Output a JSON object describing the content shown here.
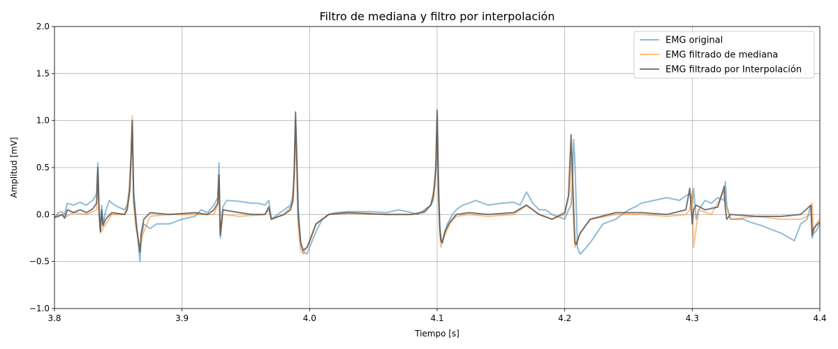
{
  "chart_data": {
    "type": "line",
    "title": "Filtro de mediana y filtro por interpolación",
    "xlabel": "Tiempo [s]",
    "ylabel": "Amplitud [mV]",
    "xlim": [
      3.8,
      4.4
    ],
    "ylim": [
      -1.0,
      2.0
    ],
    "xticks": [
      3.8,
      3.9,
      4.0,
      4.1,
      4.2,
      4.3,
      4.4
    ],
    "xtick_labels": [
      "3.8",
      "3.9",
      "4.0",
      "4.1",
      "4.2",
      "4.3",
      "4.4"
    ],
    "yticks": [
      -1.0,
      -0.5,
      0.0,
      0.5,
      1.0,
      1.5,
      2.0
    ],
    "ytick_labels": [
      "−1.0",
      "−0.5",
      "0.0",
      "0.5",
      "1.0",
      "1.5",
      "2.0"
    ],
    "grid": true,
    "legend_position": "top-right",
    "series": [
      {
        "name": "EMG original",
        "color": "#1f77b4",
        "x": [
          3.8,
          3.803,
          3.806,
          3.808,
          3.81,
          3.815,
          3.82,
          3.825,
          3.83,
          3.833,
          3.834,
          3.835,
          3.836,
          3.837,
          3.838,
          3.84,
          3.843,
          3.845,
          3.85,
          3.855,
          3.857,
          3.859,
          3.86,
          3.861,
          3.862,
          3.864,
          3.866,
          3.867,
          3.868,
          3.87,
          3.875,
          3.88,
          3.89,
          3.9,
          3.91,
          3.915,
          3.92,
          3.925,
          3.928,
          3.929,
          3.93,
          3.932,
          3.935,
          3.945,
          3.955,
          3.96,
          3.965,
          3.968,
          3.97,
          3.975,
          3.98,
          3.985,
          3.987,
          3.988,
          3.989,
          3.99,
          3.991,
          3.993,
          3.995,
          3.998,
          4.0,
          4.005,
          4.01,
          4.015,
          4.02,
          4.03,
          4.04,
          4.05,
          4.06,
          4.07,
          4.08,
          4.085,
          4.09,
          4.095,
          4.097,
          4.098,
          4.099,
          4.1,
          4.101,
          4.102,
          4.103,
          4.104,
          4.106,
          4.108,
          4.11,
          4.112,
          4.115,
          4.118,
          4.12,
          4.125,
          4.13,
          4.14,
          4.15,
          4.16,
          4.165,
          4.17,
          4.175,
          4.18,
          4.185,
          4.19,
          4.2,
          4.203,
          4.205,
          4.206,
          4.207,
          4.208,
          4.209,
          4.21,
          4.212,
          4.215,
          4.22,
          4.225,
          4.23,
          4.24,
          4.245,
          4.25,
          4.255,
          4.26,
          4.27,
          4.28,
          4.29,
          4.295,
          4.298,
          4.299,
          4.3,
          4.301,
          4.303,
          4.305,
          4.31,
          4.315,
          4.32,
          4.325,
          4.326,
          4.327,
          4.33,
          4.34,
          4.345,
          4.35,
          4.355,
          4.36,
          4.37,
          4.38,
          4.385,
          4.39,
          4.393,
          4.394,
          4.395,
          4.397,
          4.4
        ],
        "y": [
          -0.04,
          0.02,
          0.03,
          0.0,
          0.12,
          0.1,
          0.13,
          0.1,
          0.15,
          0.22,
          0.55,
          0.05,
          -0.18,
          0.1,
          -0.1,
          0.03,
          0.15,
          0.12,
          0.08,
          0.05,
          0.1,
          0.3,
          0.6,
          0.95,
          0.25,
          -0.05,
          -0.35,
          -0.5,
          -0.25,
          -0.1,
          -0.15,
          -0.1,
          -0.1,
          -0.05,
          -0.02,
          0.05,
          0.02,
          0.1,
          0.18,
          0.55,
          -0.25,
          0.08,
          0.15,
          0.14,
          0.12,
          0.12,
          0.1,
          0.15,
          -0.05,
          0.0,
          0.05,
          0.1,
          0.2,
          0.5,
          1.0,
          0.6,
          0.1,
          -0.3,
          -0.4,
          -0.42,
          -0.35,
          -0.18,
          -0.05,
          0.0,
          0.02,
          0.03,
          0.03,
          0.03,
          0.02,
          0.05,
          0.02,
          0.0,
          0.05,
          0.1,
          0.15,
          0.3,
          0.55,
          1.05,
          0.4,
          -0.1,
          -0.25,
          -0.3,
          -0.2,
          -0.1,
          -0.05,
          0.0,
          0.05,
          0.08,
          0.1,
          0.12,
          0.15,
          0.1,
          0.12,
          0.13,
          0.1,
          0.24,
          0.12,
          0.05,
          0.05,
          0.0,
          -0.05,
          0.05,
          0.1,
          0.3,
          0.8,
          0.55,
          0.1,
          -0.35,
          -0.42,
          -0.38,
          -0.3,
          -0.2,
          -0.1,
          -0.05,
          0.0,
          0.05,
          0.08,
          0.12,
          0.15,
          0.18,
          0.15,
          0.2,
          0.22,
          0.2,
          0.12,
          0.28,
          -0.05,
          0.05,
          0.15,
          0.12,
          0.18,
          0.15,
          0.35,
          0.1,
          -0.05,
          -0.05,
          -0.08,
          -0.1,
          -0.12,
          -0.15,
          -0.2,
          -0.28,
          -0.1,
          -0.05,
          0.1,
          -0.25,
          -0.2,
          -0.18,
          -0.1
        ]
      },
      {
        "name": "EMG filtrado de mediana",
        "color": "#ff7f0e",
        "x": [
          3.8,
          3.806,
          3.808,
          3.815,
          3.825,
          3.833,
          3.834,
          3.835,
          3.836,
          3.838,
          3.845,
          3.855,
          3.858,
          3.86,
          3.861,
          3.862,
          3.864,
          3.866,
          3.867,
          3.869,
          3.875,
          3.89,
          3.91,
          3.925,
          3.928,
          3.929,
          3.93,
          3.932,
          3.945,
          3.965,
          3.968,
          3.97,
          3.98,
          3.986,
          3.988,
          3.989,
          3.99,
          3.991,
          3.993,
          3.995,
          4.0,
          4.005,
          4.015,
          4.03,
          4.06,
          4.08,
          4.09,
          4.095,
          4.097,
          4.099,
          4.1,
          4.101,
          4.102,
          4.103,
          4.105,
          4.11,
          4.115,
          4.125,
          4.14,
          4.16,
          4.17,
          4.18,
          4.19,
          4.2,
          4.204,
          4.205,
          4.206,
          4.207,
          4.208,
          4.209,
          4.212,
          4.22,
          4.24,
          4.26,
          4.28,
          4.295,
          4.298,
          4.3,
          4.301,
          4.305,
          4.315,
          4.325,
          4.326,
          4.33,
          4.35,
          4.37,
          4.385,
          4.393,
          4.394,
          4.395,
          4.397,
          4.4
        ],
        "y": [
          -0.02,
          0.0,
          -0.03,
          0.02,
          0.0,
          0.05,
          0.45,
          0.0,
          -0.2,
          -0.15,
          0.0,
          0.0,
          0.15,
          0.6,
          1.05,
          0.1,
          -0.15,
          -0.3,
          -0.38,
          -0.22,
          -0.02,
          0.0,
          0.0,
          0.0,
          0.1,
          0.38,
          -0.22,
          0.0,
          -0.02,
          0.0,
          0.05,
          -0.05,
          0.0,
          0.1,
          0.4,
          1.0,
          0.5,
          -0.1,
          -0.38,
          -0.42,
          -0.3,
          -0.1,
          0.0,
          0.01,
          0.0,
          0.0,
          0.02,
          0.1,
          0.25,
          0.5,
          1.0,
          0.2,
          -0.2,
          -0.35,
          -0.25,
          -0.1,
          -0.02,
          0.0,
          -0.02,
          0.0,
          0.1,
          0.0,
          -0.05,
          0.0,
          0.25,
          0.75,
          0.35,
          -0.1,
          -0.35,
          -0.3,
          -0.2,
          -0.05,
          0.0,
          0.0,
          -0.02,
          0.0,
          0.05,
          0.25,
          -0.35,
          0.05,
          0.0,
          0.25,
          0.1,
          -0.05,
          -0.02,
          -0.05,
          -0.05,
          0.0,
          0.12,
          -0.2,
          -0.1,
          -0.05
        ]
      },
      {
        "name": "EMG filtrado por Interpolación",
        "color": "#555555",
        "x": [
          3.8,
          3.803,
          3.806,
          3.808,
          3.81,
          3.815,
          3.82,
          3.825,
          3.83,
          3.833,
          3.834,
          3.835,
          3.836,
          3.837,
          3.838,
          3.84,
          3.845,
          3.855,
          3.857,
          3.859,
          3.86,
          3.861,
          3.862,
          3.864,
          3.866,
          3.867,
          3.868,
          3.87,
          3.875,
          3.89,
          3.91,
          3.92,
          3.925,
          3.928,
          3.929,
          3.93,
          3.932,
          3.945,
          3.955,
          3.965,
          3.968,
          3.97,
          3.98,
          3.985,
          3.987,
          3.988,
          3.989,
          3.99,
          3.991,
          3.993,
          3.995,
          3.998,
          4.0,
          4.005,
          4.015,
          4.03,
          4.06,
          4.08,
          4.09,
          4.095,
          4.097,
          4.098,
          4.099,
          4.1,
          4.101,
          4.102,
          4.103,
          4.104,
          4.106,
          4.11,
          4.115,
          4.125,
          4.14,
          4.16,
          4.17,
          4.18,
          4.19,
          4.2,
          4.203,
          4.205,
          4.206,
          4.207,
          4.208,
          4.209,
          4.21,
          4.212,
          4.22,
          4.24,
          4.26,
          4.28,
          4.295,
          4.298,
          4.3,
          4.301,
          4.303,
          4.31,
          4.32,
          4.325,
          4.326,
          4.327,
          4.33,
          4.35,
          4.37,
          4.385,
          4.393,
          4.394,
          4.395,
          4.397,
          4.4
        ],
        "y": [
          -0.03,
          -0.02,
          0.0,
          -0.04,
          0.05,
          0.02,
          0.05,
          0.02,
          0.06,
          0.12,
          0.5,
          0.02,
          -0.18,
          0.05,
          -0.12,
          -0.05,
          0.02,
          0.0,
          0.05,
          0.25,
          0.6,
          1.0,
          0.2,
          -0.1,
          -0.3,
          -0.4,
          -0.2,
          -0.05,
          0.02,
          0.0,
          0.02,
          0.0,
          0.05,
          0.12,
          0.42,
          -0.22,
          0.05,
          0.02,
          0.0,
          0.0,
          0.08,
          -0.05,
          0.0,
          0.05,
          0.15,
          0.45,
          1.09,
          0.55,
          0.0,
          -0.3,
          -0.38,
          -0.35,
          -0.28,
          -0.1,
          0.0,
          0.02,
          0.0,
          0.0,
          0.03,
          0.1,
          0.2,
          0.3,
          0.5,
          1.11,
          0.3,
          -0.15,
          -0.28,
          -0.3,
          -0.18,
          -0.08,
          0.0,
          0.02,
          0.0,
          0.02,
          0.1,
          0.0,
          -0.05,
          0.02,
          0.2,
          0.85,
          0.45,
          0.05,
          -0.3,
          -0.32,
          -0.28,
          -0.2,
          -0.05,
          0.02,
          0.02,
          0.0,
          0.05,
          0.28,
          -0.1,
          0.05,
          0.1,
          0.05,
          0.08,
          0.3,
          0.05,
          -0.05,
          0.0,
          -0.02,
          -0.02,
          0.0,
          0.1,
          -0.22,
          -0.15,
          -0.12,
          -0.08
        ]
      }
    ]
  }
}
